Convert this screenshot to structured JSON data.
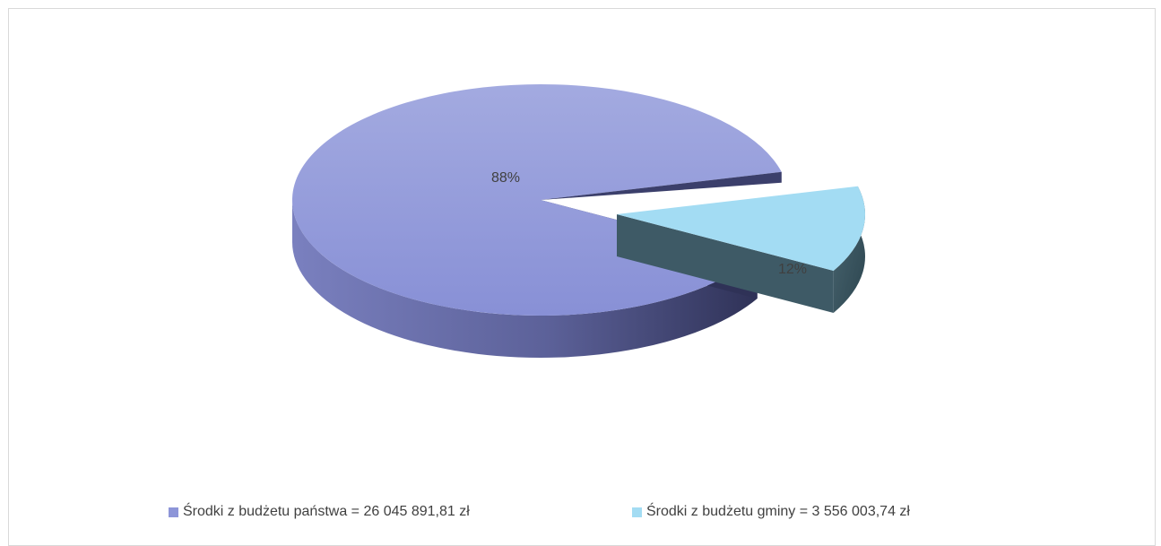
{
  "chart_data": {
    "type": "pie",
    "title": "",
    "series": [
      {
        "values": [
          26045891.81,
          3556003.74
        ],
        "labels": [
          "88%",
          "12%"
        ]
      }
    ],
    "categories": [
      "Środki z budżetu państwa = 26 045 891,81 zł",
      "Środki z budżetu gminy = 3 556 003,74 zł"
    ],
    "percentages": [
      88,
      12
    ],
    "colors": [
      "#8d95d8",
      "#a3dcf3"
    ],
    "exploded_slice": 1,
    "style": "3d",
    "legend_position": "bottom"
  }
}
